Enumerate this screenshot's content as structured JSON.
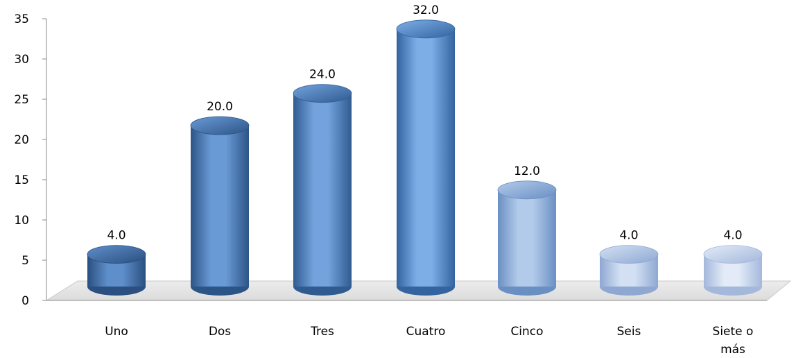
{
  "chart_data": {
    "type": "bar",
    "style": "3d-cylinder",
    "categories": [
      "Uno",
      "Dos",
      "Tres",
      "Cuatro",
      "Cinco",
      "Seis",
      "Siete o más"
    ],
    "category_lines": [
      [
        "Uno"
      ],
      [
        "Dos"
      ],
      [
        "Tres"
      ],
      [
        "Cuatro"
      ],
      [
        "Cinco"
      ],
      [
        "Seis"
      ],
      [
        "Siete o",
        "más"
      ]
    ],
    "values": [
      4.0,
      20.0,
      24.0,
      32.0,
      12.0,
      4.0,
      4.0
    ],
    "data_labels": [
      "4.0",
      "20.0",
      "24.0",
      "32.0",
      "12.0",
      "4.0",
      "4.0"
    ],
    "y_ticks": [
      "0",
      "5",
      "10",
      "15",
      "20",
      "25",
      "30",
      "35"
    ],
    "ylim": [
      0,
      35
    ],
    "title": "",
    "xlabel": "",
    "ylabel": "",
    "grid": false,
    "legend": "none",
    "colors": {
      "bars": [
        [
          "#2a4f80",
          "#5f8fcb"
        ],
        [
          "#2c5587",
          "#6a9ad6"
        ],
        [
          "#2f5b91",
          "#73a2dc"
        ],
        [
          "#3464a0",
          "#7eaee6"
        ],
        [
          "#6a8fc3",
          "#b3cbeb"
        ],
        [
          "#8ea8d2",
          "#d3e0f3"
        ],
        [
          "#a4b8dc",
          "#e2ebf7"
        ]
      ],
      "floor": "#dcdcdc",
      "axis": "#888888"
    }
  }
}
